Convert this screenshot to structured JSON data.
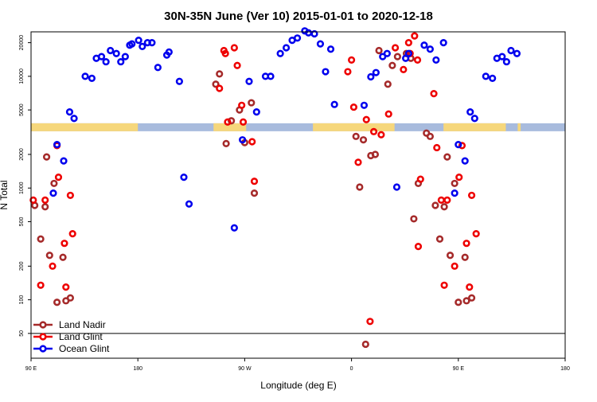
{
  "chart_data": {
    "type": "scatter",
    "title": "30N-35N June (Ver 10)   2015-01-01 to 2020-12-18",
    "xlabel": "Longitude (deg E)",
    "ylabel": "N Total",
    "xlim": [
      90,
      450
    ],
    "ylim_log10": [
      1.477,
      4.398
    ],
    "y_scale": "log",
    "x_ticks": [
      {
        "value": 90,
        "label": "90 E"
      },
      {
        "value": 162,
        "label": "180"
      },
      {
        "value": 234,
        "label": "90 W"
      },
      {
        "value": 306,
        "label": "0"
      },
      {
        "value": 378,
        "label": "90 E"
      },
      {
        "value": 450,
        "label": "180"
      }
    ],
    "y_ticks": [
      {
        "value": 50,
        "label": "50"
      },
      {
        "value": 100,
        "label": "100"
      },
      {
        "value": 200,
        "label": "200"
      },
      {
        "value": 500,
        "label": "500"
      },
      {
        "value": 1000,
        "label": "1000"
      },
      {
        "value": 2000,
        "label": "2000"
      },
      {
        "value": 5000,
        "label": "5000"
      },
      {
        "value": 10000,
        "label": "10000"
      },
      {
        "value": 20000,
        "label": "20000"
      }
    ],
    "reference_line_y": 50,
    "land_band": {
      "y_center": 3500,
      "land_color": "#f6d77c",
      "ocean_color": "#a8bbdd",
      "land_ranges": [
        [
          90,
          162
        ],
        [
          213,
          235
        ],
        [
          280,
          335
        ],
        [
          368,
          410
        ],
        [
          418,
          420
        ]
      ]
    },
    "legend": [
      {
        "name": "Land Nadir",
        "color": "#a52a2a"
      },
      {
        "name": "Land Glint",
        "color": "#ee0000"
      },
      {
        "name": "Ocean Glint",
        "color": "#0000ee"
      }
    ],
    "series": [
      {
        "name": "Land Nadir",
        "color": "#a52a2a",
        "points": [
          [
            92.5,
            700
          ],
          [
            96.5,
            350
          ],
          [
            99.5,
            680
          ],
          [
            100.5,
            1900
          ],
          [
            102.5,
            250
          ],
          [
            105.5,
            1100
          ],
          [
            107.5,
            95
          ],
          [
            111.5,
            240
          ],
          [
            113.5,
            98
          ],
          [
            116.5,
            104
          ],
          [
            214.5,
            8500
          ],
          [
            217,
            10500
          ],
          [
            221.5,
            2500
          ],
          [
            225,
            4000
          ],
          [
            230.5,
            5000
          ],
          [
            234,
            2550
          ],
          [
            238.5,
            5800
          ],
          [
            240.5,
            900
          ],
          [
            309,
            2900
          ],
          [
            311.5,
            1020
          ],
          [
            314,
            2700
          ],
          [
            315.5,
            40
          ],
          [
            319,
            1950
          ],
          [
            322,
            2000
          ],
          [
            324.5,
            17000
          ],
          [
            330.5,
            8500
          ],
          [
            333.5,
            12500
          ],
          [
            337,
            15000
          ],
          [
            343,
            16000
          ],
          [
            346,
            14500
          ],
          [
            348,
            530
          ],
          [
            351,
            1100
          ],
          [
            356.5,
            3100
          ],
          [
            359,
            2900
          ],
          [
            362.5,
            700
          ],
          [
            365.5,
            350
          ],
          [
            368.5,
            680
          ],
          [
            370.5,
            1900
          ],
          [
            372.5,
            250
          ],
          [
            375.5,
            1100
          ],
          [
            378,
            95
          ],
          [
            382.5,
            240
          ],
          [
            383.5,
            98
          ],
          [
            387,
            104
          ]
        ]
      },
      {
        "name": "Land Glint",
        "color": "#ee0000",
        "points": [
          [
            91.5,
            780
          ],
          [
            96.5,
            135
          ],
          [
            99.5,
            780
          ],
          [
            104.5,
            200
          ],
          [
            107.5,
            2400
          ],
          [
            108.5,
            1250
          ],
          [
            112.5,
            320
          ],
          [
            113.5,
            130
          ],
          [
            116.5,
            860
          ],
          [
            118,
            390
          ],
          [
            217,
            7800
          ],
          [
            220,
            17000
          ],
          [
            221,
            16000
          ],
          [
            222.5,
            3900
          ],
          [
            227,
            18000
          ],
          [
            229,
            12500
          ],
          [
            232,
            5500
          ],
          [
            233,
            3900
          ],
          [
            239,
            2600
          ],
          [
            240.5,
            1150
          ],
          [
            303.5,
            11000
          ],
          [
            306,
            14000
          ],
          [
            307.5,
            5300
          ],
          [
            310.5,
            1700
          ],
          [
            316,
            4100
          ],
          [
            318.5,
            64
          ],
          [
            321,
            3200
          ],
          [
            326,
            3000
          ],
          [
            331,
            4600
          ],
          [
            335.5,
            18000
          ],
          [
            341,
            11500
          ],
          [
            344.5,
            20000
          ],
          [
            345.5,
            16000
          ],
          [
            348.5,
            23000
          ],
          [
            350.5,
            14000
          ],
          [
            351,
            300
          ],
          [
            352.5,
            1200
          ],
          [
            361.5,
            7000
          ],
          [
            363.5,
            2300
          ],
          [
            366.5,
            780
          ],
          [
            368.5,
            135
          ],
          [
            370.5,
            780
          ],
          [
            375.5,
            200
          ],
          [
            378.5,
            1250
          ],
          [
            380.5,
            2400
          ],
          [
            383.5,
            320
          ],
          [
            385.5,
            130
          ],
          [
            387,
            860
          ],
          [
            390,
            390
          ]
        ]
      },
      {
        "name": "Ocean Glint",
        "color": "#0000ee",
        "points": [
          [
            105,
            900
          ],
          [
            107.5,
            2450
          ],
          [
            112,
            1750
          ],
          [
            116,
            4800
          ],
          [
            119,
            4200
          ],
          [
            126.5,
            10000
          ],
          [
            131,
            9600
          ],
          [
            134,
            14500
          ],
          [
            137.5,
            15000
          ],
          [
            140.5,
            13500
          ],
          [
            143.5,
            17000
          ],
          [
            147.5,
            16000
          ],
          [
            150.5,
            13500
          ],
          [
            153.5,
            15000
          ],
          [
            156.5,
            19000
          ],
          [
            158,
            19500
          ],
          [
            162.5,
            21000
          ],
          [
            165,
            18500
          ],
          [
            168.5,
            20000
          ],
          [
            171.5,
            20000
          ],
          [
            175.5,
            12000
          ],
          [
            181.5,
            15500
          ],
          [
            183,
            16500
          ],
          [
            190,
            9000
          ],
          [
            193,
            1250
          ],
          [
            196.5,
            720
          ],
          [
            227,
            440
          ],
          [
            232.5,
            2700
          ],
          [
            237,
            9000
          ],
          [
            242,
            4800
          ],
          [
            248,
            10000
          ],
          [
            251.5,
            10000
          ],
          [
            258,
            16000
          ],
          [
            262,
            18000
          ],
          [
            266,
            21000
          ],
          [
            269.5,
            22000
          ],
          [
            274.5,
            25500
          ],
          [
            277,
            24500
          ],
          [
            281,
            24000
          ],
          [
            285,
            19500
          ],
          [
            288.5,
            11000
          ],
          [
            292,
            17500
          ],
          [
            294.5,
            5600
          ],
          [
            314.5,
            5500
          ],
          [
            319,
            9900
          ],
          [
            322.5,
            10800
          ],
          [
            327,
            15000
          ],
          [
            330,
            16000
          ],
          [
            336.5,
            1020
          ],
          [
            342.5,
            14500
          ],
          [
            344.5,
            16000
          ],
          [
            355,
            19000
          ],
          [
            359,
            17500
          ],
          [
            363,
            14000
          ],
          [
            368,
            20000
          ],
          [
            375.5,
            900
          ],
          [
            378,
            2450
          ],
          [
            382.5,
            1750
          ],
          [
            386,
            4800
          ],
          [
            389,
            4200
          ],
          [
            396.5,
            10000
          ],
          [
            401,
            9600
          ],
          [
            404,
            14500
          ],
          [
            407.5,
            15000
          ],
          [
            410.5,
            13500
          ],
          [
            413.5,
            17000
          ],
          [
            417.5,
            16000
          ]
        ]
      }
    ]
  }
}
